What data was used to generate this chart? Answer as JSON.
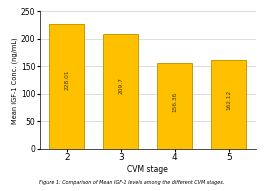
{
  "categories": [
    "2",
    "3",
    "4",
    "5"
  ],
  "values": [
    228.01,
    209.7,
    156.36,
    162.12
  ],
  "bar_color": "#FFC000",
  "bar_edge_color": "#C89A00",
  "xlabel": "CVM stage",
  "ylabel": "Mean IGF-1 Conc. (ng/mL)",
  "ylim": [
    0,
    250
  ],
  "yticks": [
    0,
    50,
    100,
    150,
    200,
    250
  ],
  "bar_labels": [
    "228.01",
    "209.7",
    "156.36",
    "162.12"
  ],
  "caption": "Figure 1: Comparison of Mean IGF-1 levels among the different CVM stages.",
  "background_color": "#ffffff",
  "grid_color": "#d0d0d0",
  "caption_color": "#000000",
  "bar_width": 0.65
}
